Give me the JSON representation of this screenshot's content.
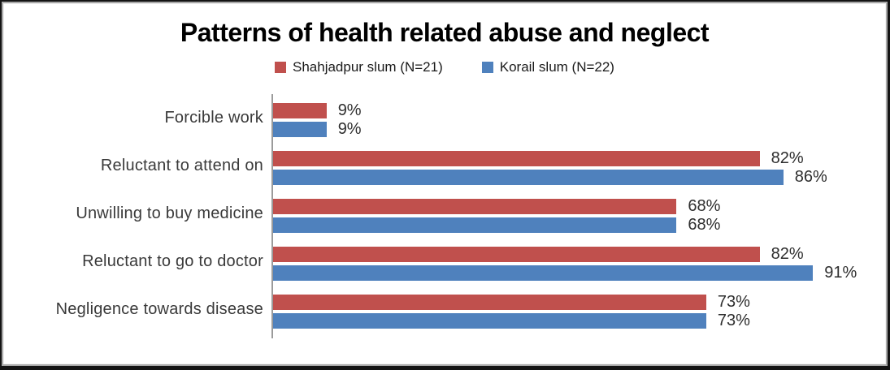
{
  "chart_data": {
    "type": "bar",
    "orientation": "horizontal",
    "title": "Patterns of health related abuse and neglect",
    "categories": [
      "Forcible work",
      "Reluctant to attend on",
      "Unwilling to buy medicine",
      "Reluctant to go to doctor",
      "Negligence towards disease"
    ],
    "series": [
      {
        "name": "Shahjadpur slum (N=21)",
        "color": "#C0504D",
        "values": [
          9,
          82,
          68,
          82,
          73
        ]
      },
      {
        "name": "Korail slum (N=22)",
        "color": "#4F81BD",
        "values": [
          9,
          86,
          68,
          91,
          73
        ]
      }
    ],
    "value_suffix": "%",
    "xlim": [
      0,
      100
    ],
    "grid": false,
    "legend_position": "top-center",
    "data_labels": "outside-end",
    "axis_color": "#9b9b9b",
    "title_color": "#000000",
    "category_label_color": "#3a3a3a",
    "bar_label_color": "#2e2e2e"
  }
}
